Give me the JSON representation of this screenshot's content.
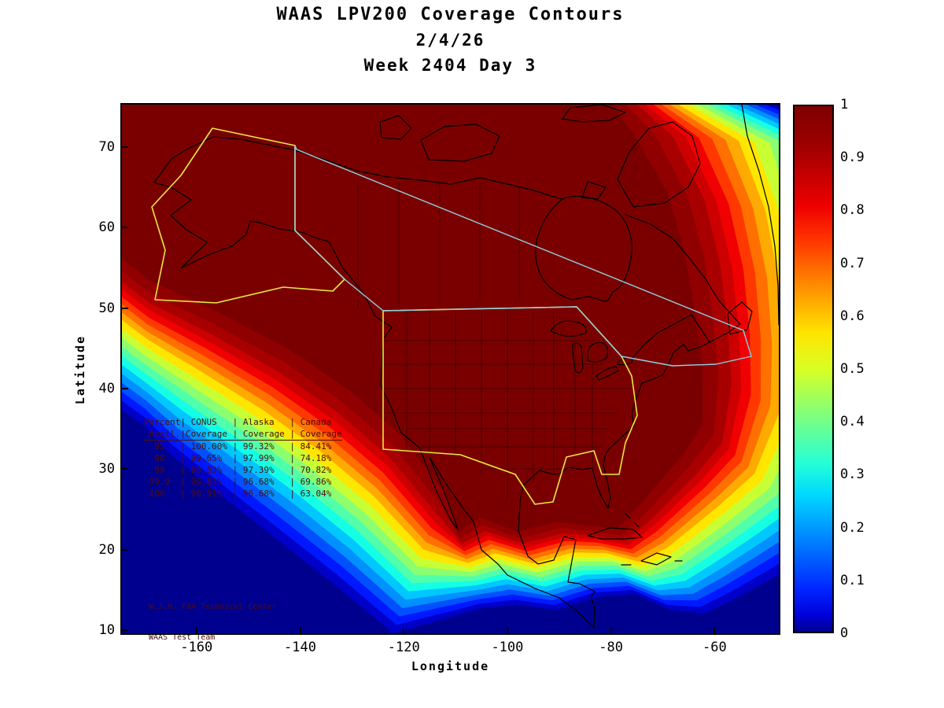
{
  "title": {
    "line1": "WAAS LPV200 Coverage Contours",
    "line2": "2/4/26",
    "line3": "Week 2404 Day 3"
  },
  "axes": {
    "xlabel": "Longitude",
    "ylabel": "Latitude",
    "x_ticks": [
      -160,
      -140,
      -120,
      -100,
      -80,
      -60
    ],
    "y_ticks": [
      70,
      60,
      50,
      40,
      30,
      20,
      10
    ],
    "x_range": [
      -174.4,
      -47.6
    ],
    "y_range": [
      9.6,
      75.3
    ]
  },
  "colorbar": {
    "tick_labels": [
      "1",
      "0.9",
      "0.8",
      "0.7",
      "0.6",
      "0.5",
      "0.4",
      "0.3",
      "0.2",
      "0.1",
      "0"
    ],
    "min": 0,
    "max": 1,
    "gradient": [
      [
        0,
        "#7f0000"
      ],
      [
        7,
        "#9b0000"
      ],
      [
        13,
        "#c40000"
      ],
      [
        19,
        "#ee0000"
      ],
      [
        25,
        "#ff3000"
      ],
      [
        31,
        "#ff6c00"
      ],
      [
        37,
        "#ffa800"
      ],
      [
        43,
        "#ffe400"
      ],
      [
        50,
        "#d8ff24"
      ],
      [
        56,
        "#9cff60"
      ],
      [
        62,
        "#60ff9c"
      ],
      [
        68,
        "#24ffd8"
      ],
      [
        74,
        "#00d8ff"
      ],
      [
        80,
        "#009cff"
      ],
      [
        86,
        "#0060ff"
      ],
      [
        92,
        "#0024ff"
      ],
      [
        97,
        "#0000d8"
      ],
      [
        100,
        "#00008f"
      ]
    ]
  },
  "colors": {
    "ocean_background": "#00008f",
    "conus_alaska_outline": "#e8e845",
    "canada_outline": "#8fd0e0",
    "coastline": "#000000",
    "overlay_text": "#4d0d0d",
    "band_colors": [
      "#0000c8",
      "#0018ff",
      "#0050ff",
      "#0090ff",
      "#00c8ff",
      "#14ffe4",
      "#50ffac",
      "#8cff70",
      "#c8ff34",
      "#ffe600",
      "#ffaa00",
      "#ff7000",
      "#ff3800",
      "#f00000",
      "#cc0000",
      "#a80000",
      "#900000",
      "#7a0000"
    ],
    "band_ts": [
      1,
      0.93,
      0.86,
      0.79,
      0.72,
      0.65,
      0.58,
      0.51,
      0.44,
      0.37,
      0.3,
      0.24,
      0.18,
      0.12,
      0.06,
      0,
      -0.08,
      -0.18
    ]
  },
  "overlay_table": {
    "lines": [
      "Percent| CONUS   | Alaska   | Canada",
      " Avail.|Coverage | Coverage | Coverage",
      "  95   | 100.00% | 99.32%   | 84.41%",
      "  98   | 99.65%  | 97.99%   | 74.18%",
      "  99   | 98.83%  | 97.39%   | 70.82%",
      " 99.9  | 96.83%  | 96.68%   | 69.86%",
      " 100   | 96.51%  | 96.68%   | 63.04%"
    ]
  },
  "credit": {
    "line1": "W.J.H. FAA Technical Center",
    "line2": "WAAS Test Team"
  },
  "chart_data": {
    "type": "heatmap",
    "subtype": "filled-contour-map",
    "title": "WAAS LPV200 Coverage Contours",
    "subtitle": [
      "2/4/26",
      "Week 2404 Day 3"
    ],
    "xlabel": "Longitude",
    "ylabel": "Latitude",
    "xlim": [
      -175,
      -47
    ],
    "ylim": [
      10,
      75
    ],
    "colormap": "jet",
    "colorbar_range": [
      0,
      1
    ],
    "colorbar_ticks": [
      0,
      0.1,
      0.2,
      0.3,
      0.4,
      0.5,
      0.6,
      0.7,
      0.8,
      0.9,
      1
    ],
    "description": "LPV200 availability coverage contours over North America; availability near 1 (dark red) over CONUS, Alaska and Canada, falling off to 0 (deep blue) over the Pacific, southern Mexico, the Caribbean and the far north-east.",
    "regions_outlined": [
      "CONUS",
      "Alaska",
      "Canada"
    ],
    "coverage_table": {
      "columns": [
        "Percent Avail.",
        "CONUS Coverage",
        "Alaska Coverage",
        "Canada Coverage"
      ],
      "rows": [
        [
          "95",
          "100.00%",
          "99.32%",
          "84.41%"
        ],
        [
          "98",
          "99.65%",
          "97.99%",
          "74.18%"
        ],
        [
          "99",
          "98.83%",
          "97.39%",
          "70.82%"
        ],
        [
          "99.9",
          "96.83%",
          "96.68%",
          "69.86%"
        ],
        [
          "100",
          "96.51%",
          "96.68%",
          "63.04%"
        ]
      ]
    }
  }
}
